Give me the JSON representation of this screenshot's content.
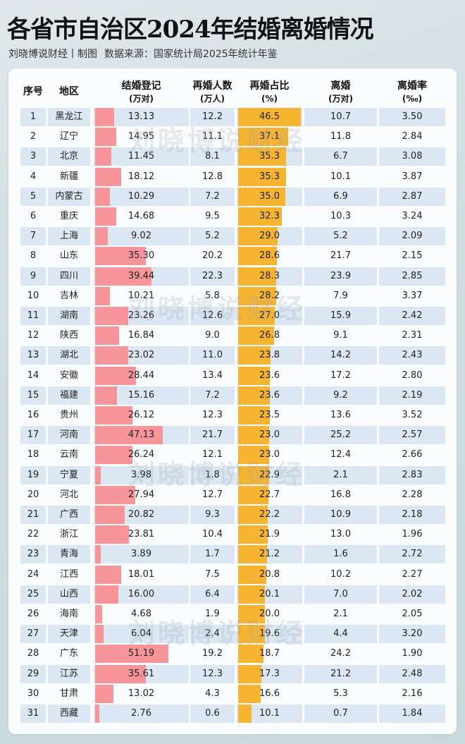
{
  "header": {
    "title": "各省市自治区2024年结婚离婚情况",
    "author": "刘晓博说财经丨制图",
    "source": "数据来源：国家统计局2025年统计年鉴"
  },
  "watermark": "刘晓博说财经",
  "columns": {
    "idx": "序号",
    "region": "地区",
    "marriage": "结婚登记",
    "marriage_unit": "(万对)",
    "remarriage": "再婚人数",
    "remarriage_unit": "(万人)",
    "remarriage_pct": "再婚占比",
    "remarriage_pct_unit": "(%)",
    "divorce": "离婚",
    "divorce_unit": "(万对)",
    "divorce_rate": "离婚率",
    "divorce_rate_unit": "(‰)"
  },
  "colors": {
    "marriage_bar": "#f7959a",
    "remarriage_pct_bar": "#f7b430",
    "row_alt": "#dbe7f2"
  },
  "chart_data": {
    "type": "table",
    "title": "各省市自治区2024年结婚离婚情况",
    "bar_scales": {
      "marriage_max": 51.19,
      "remarriage_pct_max": 46.5
    },
    "rows": [
      {
        "idx": "1",
        "region": "黑龙江",
        "marriage": "13.13",
        "remarriage": "12.2",
        "pct": "46.5",
        "divorce": "10.7",
        "rate": "3.50"
      },
      {
        "idx": "2",
        "region": "辽宁",
        "marriage": "14.95",
        "remarriage": "11.1",
        "pct": "37.1",
        "divorce": "11.8",
        "rate": "2.84"
      },
      {
        "idx": "3",
        "region": "北京",
        "marriage": "11.45",
        "remarriage": "8.1",
        "pct": "35.3",
        "divorce": "6.7",
        "rate": "3.08"
      },
      {
        "idx": "4",
        "region": "新疆",
        "marriage": "18.12",
        "remarriage": "12.8",
        "pct": "35.3",
        "divorce": "10.1",
        "rate": "3.87"
      },
      {
        "idx": "5",
        "region": "内蒙古",
        "marriage": "10.29",
        "remarriage": "7.2",
        "pct": "35.0",
        "divorce": "6.9",
        "rate": "2.87"
      },
      {
        "idx": "6",
        "region": "重庆",
        "marriage": "14.68",
        "remarriage": "9.5",
        "pct": "32.3",
        "divorce": "10.3",
        "rate": "3.24"
      },
      {
        "idx": "7",
        "region": "上海",
        "marriage": "9.02",
        "remarriage": "5.2",
        "pct": "29.0",
        "divorce": "5.2",
        "rate": "2.09"
      },
      {
        "idx": "8",
        "region": "山东",
        "marriage": "35.30",
        "remarriage": "20.2",
        "pct": "28.6",
        "divorce": "21.7",
        "rate": "2.15"
      },
      {
        "idx": "9",
        "region": "四川",
        "marriage": "39.44",
        "remarriage": "22.3",
        "pct": "28.3",
        "divorce": "23.9",
        "rate": "2.85"
      },
      {
        "idx": "10",
        "region": "吉林",
        "marriage": "10.21",
        "remarriage": "5.8",
        "pct": "28.2",
        "divorce": "7.9",
        "rate": "3.37"
      },
      {
        "idx": "11",
        "region": "湖南",
        "marriage": "23.26",
        "remarriage": "12.6",
        "pct": "27.0",
        "divorce": "15.9",
        "rate": "2.42"
      },
      {
        "idx": "12",
        "region": "陕西",
        "marriage": "16.84",
        "remarriage": "9.0",
        "pct": "26.8",
        "divorce": "9.1",
        "rate": "2.31"
      },
      {
        "idx": "13",
        "region": "湖北",
        "marriage": "23.02",
        "remarriage": "11.0",
        "pct": "23.8",
        "divorce": "14.2",
        "rate": "2.43"
      },
      {
        "idx": "14",
        "region": "安徽",
        "marriage": "28.44",
        "remarriage": "13.4",
        "pct": "23.6",
        "divorce": "17.2",
        "rate": "2.80"
      },
      {
        "idx": "15",
        "region": "福建",
        "marriage": "15.16",
        "remarriage": "7.2",
        "pct": "23.6",
        "divorce": "9.2",
        "rate": "2.19"
      },
      {
        "idx": "16",
        "region": "贵州",
        "marriage": "26.12",
        "remarriage": "12.3",
        "pct": "23.5",
        "divorce": "13.6",
        "rate": "3.52"
      },
      {
        "idx": "17",
        "region": "河南",
        "marriage": "47.13",
        "remarriage": "21.7",
        "pct": "23.0",
        "divorce": "25.2",
        "rate": "2.57"
      },
      {
        "idx": "18",
        "region": "云南",
        "marriage": "26.24",
        "remarriage": "12.1",
        "pct": "23.0",
        "divorce": "12.4",
        "rate": "2.66"
      },
      {
        "idx": "19",
        "region": "宁夏",
        "marriage": "3.98",
        "remarriage": "1.8",
        "pct": "22.9",
        "divorce": "2.1",
        "rate": "2.83"
      },
      {
        "idx": "20",
        "region": "河北",
        "marriage": "27.94",
        "remarriage": "12.7",
        "pct": "22.7",
        "divorce": "16.8",
        "rate": "2.28"
      },
      {
        "idx": "21",
        "region": "广西",
        "marriage": "20.82",
        "remarriage": "9.3",
        "pct": "22.2",
        "divorce": "10.9",
        "rate": "2.18"
      },
      {
        "idx": "22",
        "region": "浙江",
        "marriage": "23.81",
        "remarriage": "10.4",
        "pct": "21.9",
        "divorce": "13.0",
        "rate": "1.96"
      },
      {
        "idx": "23",
        "region": "青海",
        "marriage": "3.89",
        "remarriage": "1.7",
        "pct": "21.2",
        "divorce": "1.6",
        "rate": "2.72"
      },
      {
        "idx": "24",
        "region": "江西",
        "marriage": "18.01",
        "remarriage": "7.5",
        "pct": "20.8",
        "divorce": "10.2",
        "rate": "2.27"
      },
      {
        "idx": "25",
        "region": "山西",
        "marriage": "16.00",
        "remarriage": "6.4",
        "pct": "20.1",
        "divorce": "7.0",
        "rate": "2.02"
      },
      {
        "idx": "26",
        "region": "海南",
        "marriage": "4.68",
        "remarriage": "1.9",
        "pct": "20.0",
        "divorce": "2.1",
        "rate": "2.05"
      },
      {
        "idx": "27",
        "region": "天津",
        "marriage": "6.04",
        "remarriage": "2.4",
        "pct": "19.6",
        "divorce": "4.4",
        "rate": "3.20"
      },
      {
        "idx": "28",
        "region": "广东",
        "marriage": "51.19",
        "remarriage": "19.2",
        "pct": "18.7",
        "divorce": "24.2",
        "rate": "1.90"
      },
      {
        "idx": "29",
        "region": "江苏",
        "marriage": "35.61",
        "remarriage": "12.3",
        "pct": "17.3",
        "divorce": "21.2",
        "rate": "2.48"
      },
      {
        "idx": "30",
        "region": "甘肃",
        "marriage": "13.02",
        "remarriage": "4.3",
        "pct": "16.6",
        "divorce": "5.3",
        "rate": "2.16"
      },
      {
        "idx": "31",
        "region": "西藏",
        "marriage": "2.76",
        "remarriage": "0.6",
        "pct": "10.1",
        "divorce": "0.7",
        "rate": "1.84"
      }
    ]
  }
}
